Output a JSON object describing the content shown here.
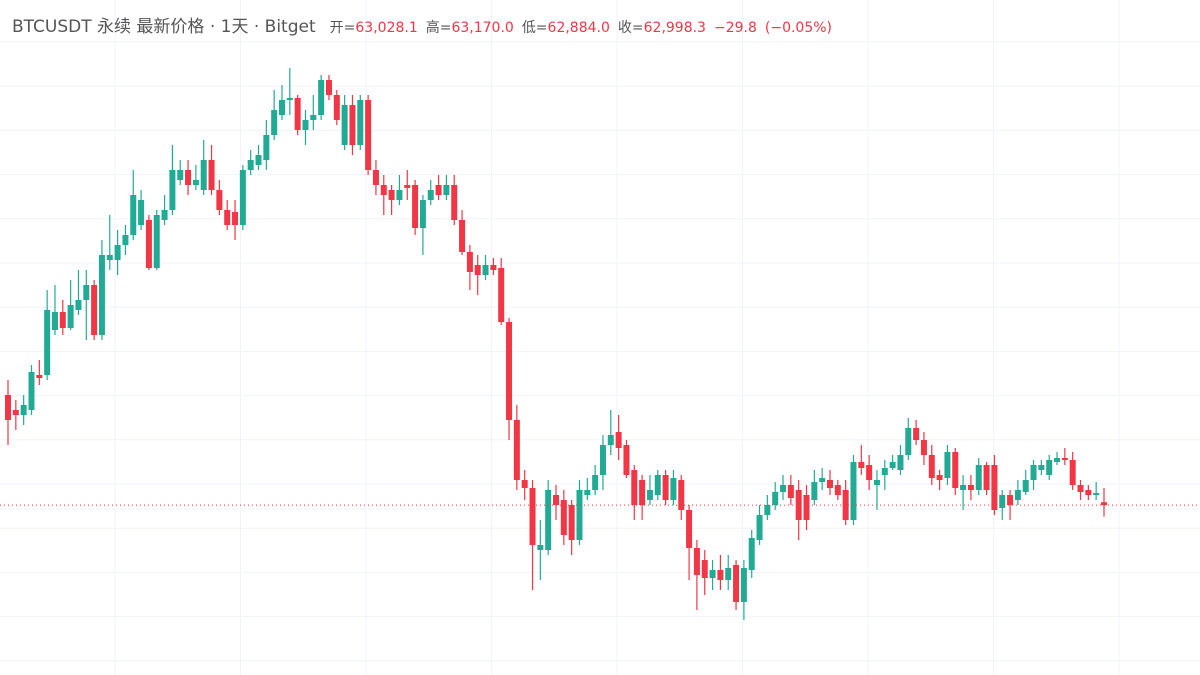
{
  "chart_data": {
    "type": "candlestick",
    "title": "BTCUSDT 永续 最新价格 · 1天 · Bitget",
    "header_values": [
      {
        "name": "开=",
        "value": 63028.1,
        "label": "63,028.1"
      },
      {
        "name": "高=",
        "value": 63170.0,
        "label": "63,170.0"
      },
      {
        "name": "低=",
        "value": 62884.0,
        "label": "62,884.0"
      },
      {
        "name": "收=",
        "value": 62998.3,
        "label": "62,998.3"
      },
      {
        "value": -29.8,
        "label": "−29.8"
      },
      {
        "value": -0.05,
        "label": "(−0.05%)"
      }
    ],
    "up_color": "#22ab94",
    "down_color": "#f23645",
    "ylim": [
      61300,
      68050
    ],
    "grid": true,
    "price_line": true,
    "open": [
      64100,
      63950,
      63900,
      63950,
      64300,
      64300,
      64750,
      64930,
      64770,
      64950,
      65050,
      65200,
      64700,
      65450,
      65450,
      65600,
      65700,
      65800,
      65850,
      65370,
      65850,
      65950,
      66250,
      66350,
      66200,
      66150,
      66450,
      66150,
      65950,
      65930,
      65800,
      66350,
      66400,
      66450,
      66700,
      66900,
      67050,
      67070,
      66750,
      66850,
      66900,
      67250,
      67100,
      66600,
      67000,
      66600,
      67050,
      66350,
      66200,
      66150,
      66050,
      66200,
      66200,
      65770,
      66050,
      66200,
      66100,
      66200,
      65850,
      65530,
      65400,
      65300,
      65400,
      65370,
      64830,
      63850,
      63250,
      63170,
      62550,
      62550,
      63100,
      63050,
      63000,
      62650,
      63100,
      63150,
      63300,
      63600,
      63730,
      63600,
      63350,
      63250,
      63050,
      63100,
      63300,
      63050,
      63250,
      62950,
      62570,
      62450,
      62270,
      62350,
      62250,
      62400,
      62030,
      62350,
      62650,
      62900,
      63000,
      63130,
      63200,
      63150,
      63100,
      63050,
      63230,
      63250,
      63200,
      63150,
      62850,
      63430,
      63400,
      63200,
      63300,
      63370,
      63350,
      63500,
      63770,
      63650,
      63500,
      63300,
      63270,
      63530,
      63150,
      63200,
      63150,
      63400,
      63400,
      62970,
      63100,
      63050,
      63130,
      63250,
      63350,
      63300,
      63430,
      63470,
      63450,
      63200,
      63150,
      63100,
      63028.1
    ],
    "high": [
      64250,
      64050,
      64100,
      64400,
      64450,
      65150,
      65200,
      65050,
      65250,
      65350,
      65350,
      65250,
      65650,
      65900,
      65750,
      65800,
      66350,
      66150,
      65900,
      65950,
      66100,
      66600,
      66450,
      66450,
      66400,
      66650,
      66600,
      66250,
      66050,
      66050,
      66400,
      66550,
      66600,
      66850,
      67150,
      67200,
      67370,
      67100,
      66950,
      67100,
      67300,
      67300,
      67150,
      67100,
      67100,
      67100,
      67100,
      66450,
      66300,
      66200,
      66300,
      66350,
      66250,
      66100,
      66250,
      66300,
      66300,
      66300,
      65950,
      65600,
      65500,
      65500,
      65470,
      65470,
      64870,
      64000,
      63350,
      63250,
      62850,
      63250,
      63200,
      63150,
      63050,
      63250,
      63270,
      63400,
      63700,
      63950,
      63900,
      63650,
      63400,
      63300,
      63300,
      63350,
      63350,
      63350,
      63300,
      63000,
      62650,
      62550,
      62450,
      62500,
      62500,
      62450,
      62450,
      62750,
      63000,
      63100,
      63230,
      63300,
      63300,
      63250,
      63200,
      63350,
      63370,
      63350,
      63250,
      63250,
      63500,
      63600,
      63500,
      63350,
      63450,
      63500,
      63600,
      63870,
      63850,
      63730,
      63600,
      63350,
      63600,
      63570,
      63300,
      63300,
      63470,
      63430,
      63500,
      63150,
      63150,
      63250,
      63350,
      63450,
      63450,
      63500,
      63530,
      63570,
      63530,
      63250,
      63200,
      63230,
      63170.0
    ],
    "low": [
      63600,
      63750,
      63800,
      63900,
      64200,
      64250,
      64700,
      64700,
      64750,
      64900,
      64650,
      64650,
      64650,
      65350,
      65300,
      65500,
      65650,
      65750,
      65350,
      65350,
      65800,
      65900,
      66200,
      66100,
      66150,
      66100,
      66100,
      65900,
      65750,
      65650,
      65750,
      66300,
      66350,
      66350,
      66650,
      66850,
      66900,
      66700,
      66600,
      66750,
      66850,
      67050,
      66800,
      66550,
      66500,
      66550,
      66300,
      66100,
      65900,
      65900,
      66000,
      66050,
      65700,
      65500,
      66000,
      66050,
      66050,
      65800,
      65500,
      65150,
      65100,
      65250,
      65300,
      64800,
      63650,
      63150,
      63050,
      62150,
      62250,
      62500,
      62850,
      62600,
      62500,
      62600,
      63050,
      63100,
      63150,
      63500,
      63450,
      63270,
      62850,
      62850,
      63000,
      63050,
      63000,
      63000,
      62850,
      62250,
      61950,
      62100,
      62150,
      62150,
      62150,
      61950,
      61850,
      62270,
      62600,
      62850,
      62950,
      63050,
      63000,
      62650,
      62750,
      63000,
      63150,
      63100,
      63050,
      62800,
      62800,
      63300,
      63150,
      62950,
      63150,
      63350,
      63300,
      63450,
      63600,
      63400,
      63200,
      63150,
      63200,
      63100,
      62950,
      63050,
      63100,
      63100,
      62900,
      62850,
      62850,
      63000,
      63100,
      63150,
      63300,
      63250,
      63400,
      63400,
      63150,
      63050,
      63050,
      63050,
      62884.0
    ],
    "close": [
      63850,
      63900,
      64000,
      64330,
      64270,
      64950,
      64930,
      64770,
      65000,
      65050,
      65200,
      64700,
      65500,
      65500,
      65600,
      65700,
      66100,
      66050,
      65370,
      65900,
      65950,
      66350,
      66350,
      66200,
      66250,
      66450,
      66150,
      65950,
      65800,
      65800,
      66350,
      66450,
      66500,
      66700,
      66950,
      67050,
      67070,
      66750,
      66850,
      66900,
      67250,
      67100,
      66850,
      67000,
      66600,
      67050,
      66350,
      66200,
      66100,
      66050,
      66150,
      66170,
      65770,
      66050,
      66150,
      66100,
      66200,
      65850,
      65530,
      65330,
      65300,
      65400,
      65350,
      64830,
      63850,
      63250,
      63170,
      62600,
      62600,
      63150,
      63000,
      62700,
      62650,
      63150,
      63150,
      63300,
      63600,
      63700,
      63570,
      63300,
      63000,
      63000,
      63150,
      63300,
      63050,
      63270,
      62950,
      62570,
      62300,
      62270,
      62350,
      62250,
      62370,
      62030,
      62370,
      62670,
      62900,
      63000,
      63130,
      63200,
      63070,
      62850,
      62850,
      63230,
      63270,
      63170,
      63100,
      62850,
      63430,
      63370,
      63250,
      63250,
      63370,
      63430,
      63500,
      63770,
      63650,
      63500,
      63270,
      63250,
      63530,
      63170,
      63200,
      63150,
      63400,
      63150,
      62950,
      63100,
      63000,
      63150,
      63250,
      63400,
      63400,
      63450,
      63470,
      63450,
      63200,
      63130,
      63100,
      63120,
      62998.3
    ]
  }
}
